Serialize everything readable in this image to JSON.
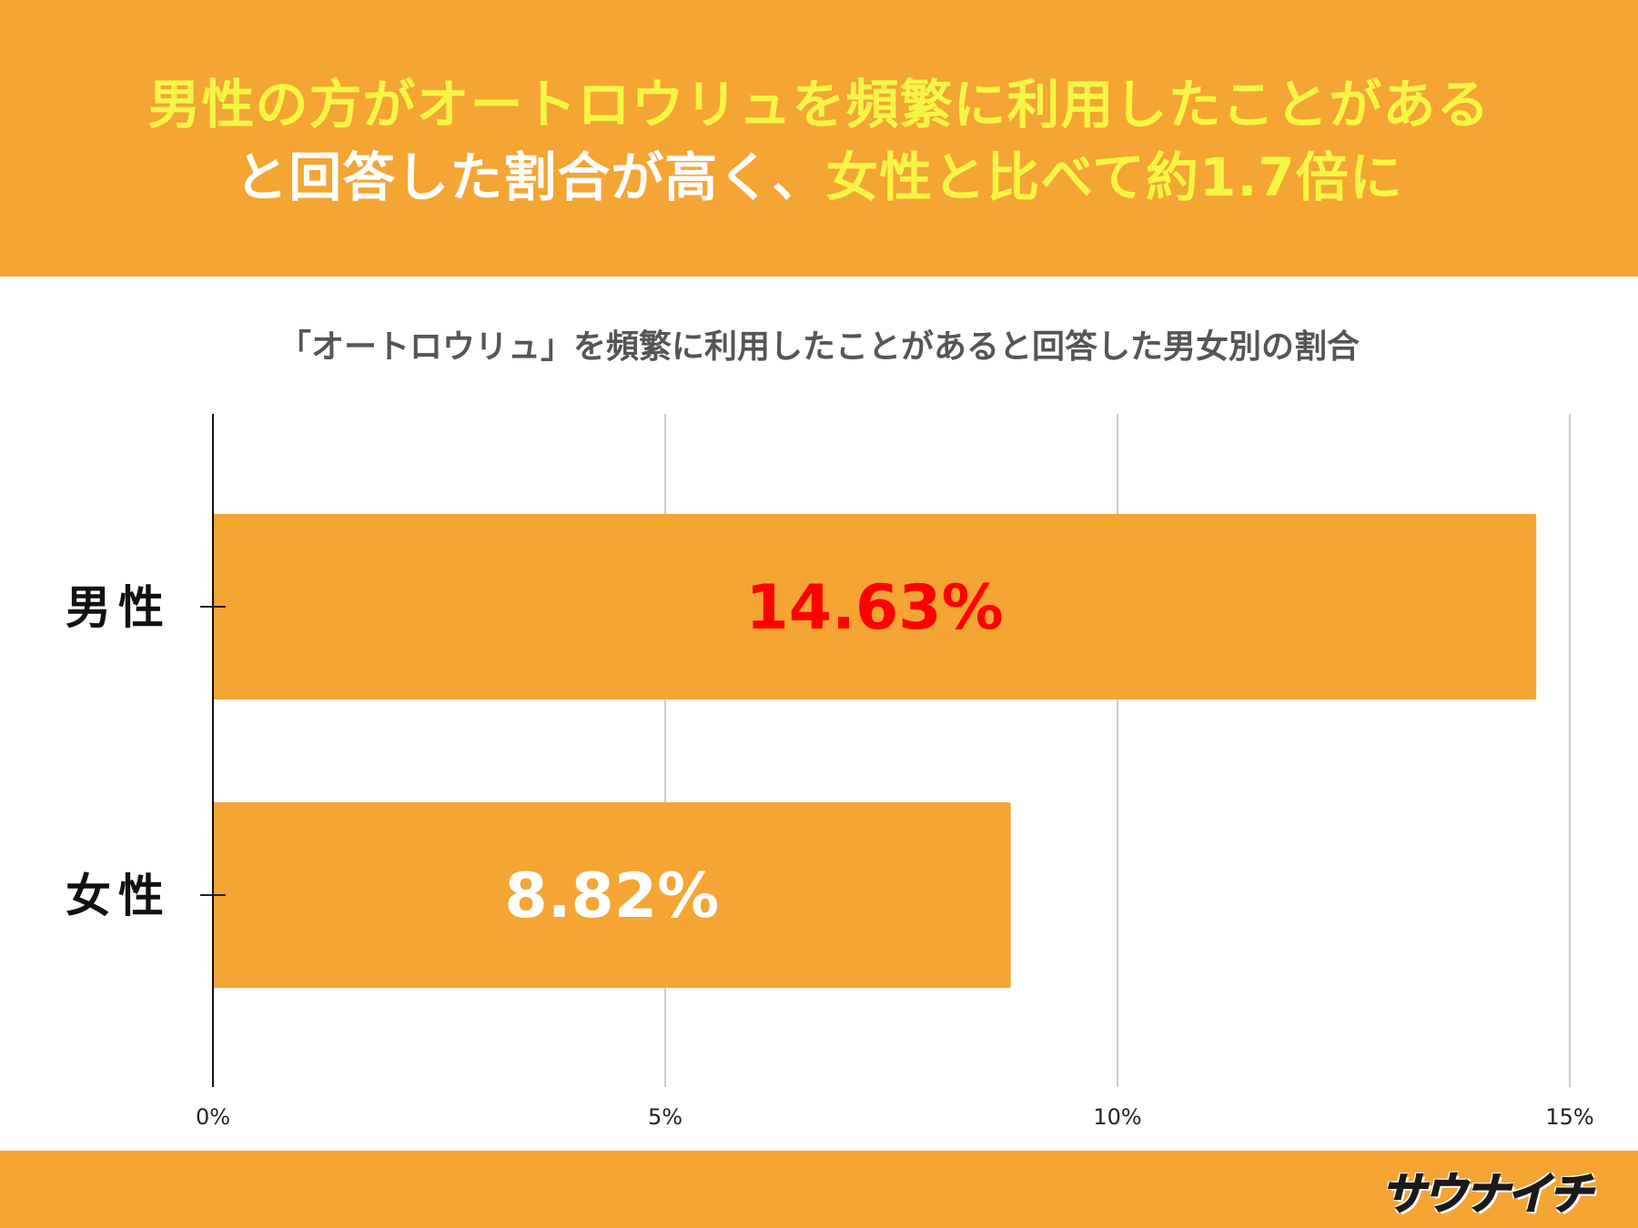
{
  "header": {
    "line1": [
      {
        "text": "男性の方がオートロウリュを頻繁に利用したことがある",
        "color": "yellow"
      }
    ],
    "line2": [
      {
        "text": "と回答した割合が高く、",
        "color": "white"
      },
      {
        "text": "女性と比べて約1.7倍に",
        "color": "yellow"
      }
    ]
  },
  "footer": {
    "logo": "サウナイチ"
  },
  "colors": {
    "accent": "#F4A533",
    "headline_highlight": "#F5F545",
    "male_value_label": "#FF0000",
    "female_value_label": "#FFFFFF"
  },
  "chart_data": {
    "type": "bar",
    "orientation": "horizontal",
    "title": "「オートロウリュ」を頻繁に利用したことがあると回答した男女別の割合",
    "categories": [
      "男性",
      "女性"
    ],
    "values": [
      14.63,
      8.82
    ],
    "value_labels": [
      "14.63%",
      "8.82%"
    ],
    "xlim": [
      0,
      15
    ],
    "xticks": [
      0,
      5,
      10,
      15
    ],
    "xtick_labels": [
      "0%",
      "5%",
      "10%",
      "15%"
    ],
    "grid": true,
    "legend": "none"
  }
}
